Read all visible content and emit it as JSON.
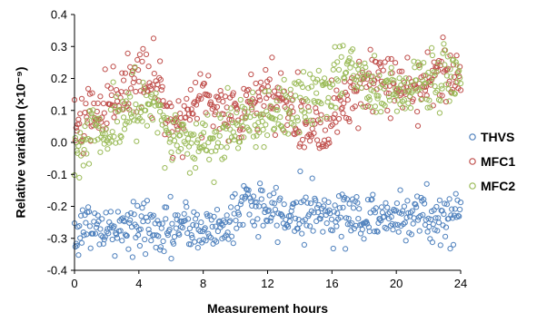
{
  "chart_data": {
    "type": "scatter",
    "xlabel": "Measurement hours",
    "ylabel": "Relative variation (×10⁻⁹)",
    "xlim": [
      0,
      24
    ],
    "ylim": [
      -0.4,
      0.4
    ],
    "x_ticks": [
      0,
      4,
      8,
      12,
      16,
      20,
      24
    ],
    "y_ticks": [
      -0.4,
      -0.3,
      -0.2,
      -0.1,
      0.0,
      0.1,
      0.2,
      0.3,
      0.4
    ],
    "y_tick_labels": [
      "-0.4",
      "-0.3",
      "-0.2",
      "-0.1",
      "0.0",
      "0.1",
      "0.2",
      "0.3",
      "0.4"
    ],
    "x_tick_labels": [
      "0",
      "4",
      "8",
      "12",
      "16",
      "20",
      "24"
    ],
    "grid": false,
    "legend_position": "right",
    "marker": "open-circle",
    "series": [
      {
        "name": "THVS",
        "color": "#4f81bd",
        "trend": [
          [
            0,
            -0.29
          ],
          [
            0.5,
            -0.26
          ],
          [
            1,
            -0.26
          ],
          [
            1.5,
            -0.27
          ],
          [
            2,
            -0.28
          ],
          [
            2.5,
            -0.27
          ],
          [
            3,
            -0.27
          ],
          [
            3.5,
            -0.26
          ],
          [
            4,
            -0.27
          ],
          [
            4.5,
            -0.26
          ],
          [
            5,
            -0.27
          ],
          [
            5.5,
            -0.28
          ],
          [
            6,
            -0.27
          ],
          [
            6.5,
            -0.26
          ],
          [
            7,
            -0.27
          ],
          [
            7.5,
            -0.27
          ],
          [
            8,
            -0.28
          ],
          [
            8.5,
            -0.27
          ],
          [
            9,
            -0.26
          ],
          [
            9.5,
            -0.25
          ],
          [
            10,
            -0.24
          ],
          [
            10.5,
            -0.17
          ],
          [
            11,
            -0.2
          ],
          [
            11.5,
            -0.21
          ],
          [
            12,
            -0.22
          ],
          [
            12.5,
            -0.21
          ],
          [
            13,
            -0.23
          ],
          [
            13.5,
            -0.22
          ],
          [
            14,
            -0.22
          ],
          [
            14.5,
            -0.21
          ],
          [
            15,
            -0.22
          ],
          [
            15.5,
            -0.22
          ],
          [
            16,
            -0.23
          ],
          [
            16.5,
            -0.22
          ],
          [
            17,
            -0.22
          ],
          [
            17.5,
            -0.23
          ],
          [
            18,
            -0.24
          ],
          [
            18.5,
            -0.23
          ],
          [
            19,
            -0.24
          ],
          [
            19.5,
            -0.23
          ],
          [
            20,
            -0.22
          ],
          [
            20.5,
            -0.22
          ],
          [
            21,
            -0.23
          ],
          [
            21.5,
            -0.23
          ],
          [
            22,
            -0.24
          ],
          [
            22.5,
            -0.23
          ],
          [
            23,
            -0.24
          ],
          [
            23.5,
            -0.23
          ],
          [
            24,
            -0.23
          ]
        ],
        "noise": 0.04
      },
      {
        "name": "MFC1",
        "color": "#c0504d",
        "trend": [
          [
            0,
            0.06
          ],
          [
            0.5,
            0.08
          ],
          [
            1,
            0.07
          ],
          [
            1.5,
            0.1
          ],
          [
            2,
            0.13
          ],
          [
            2.5,
            0.16
          ],
          [
            3,
            0.15
          ],
          [
            3.5,
            0.18
          ],
          [
            4,
            0.2
          ],
          [
            4.5,
            0.19
          ],
          [
            5,
            0.2
          ],
          [
            5.5,
            0.12
          ],
          [
            6,
            0.08
          ],
          [
            6.5,
            0.07
          ],
          [
            7,
            0.1
          ],
          [
            7.5,
            0.12
          ],
          [
            8,
            0.14
          ],
          [
            8.5,
            0.15
          ],
          [
            9,
            0.12
          ],
          [
            9.5,
            0.08
          ],
          [
            10,
            0.09
          ],
          [
            10.5,
            0.1
          ],
          [
            11,
            0.12
          ],
          [
            11.5,
            0.13
          ],
          [
            12,
            0.14
          ],
          [
            12.5,
            0.13
          ],
          [
            13,
            0.12
          ],
          [
            13.5,
            0.11
          ],
          [
            14,
            0.07
          ],
          [
            14.5,
            0.06
          ],
          [
            15,
            0.05
          ],
          [
            15.5,
            0.03
          ],
          [
            16,
            0.1
          ],
          [
            16.5,
            0.12
          ],
          [
            17,
            0.15
          ],
          [
            17.5,
            0.17
          ],
          [
            18,
            0.18
          ],
          [
            18.5,
            0.18
          ],
          [
            19,
            0.2
          ],
          [
            19.5,
            0.17
          ],
          [
            20,
            0.16
          ],
          [
            20.5,
            0.17
          ],
          [
            21,
            0.18
          ],
          [
            21.5,
            0.19
          ],
          [
            22,
            0.2
          ],
          [
            22.5,
            0.21
          ],
          [
            23,
            0.22
          ],
          [
            23.5,
            0.22
          ],
          [
            24,
            0.22
          ]
        ],
        "noise": 0.05
      },
      {
        "name": "MFC2",
        "color": "#9bbb59",
        "trend": [
          [
            0,
            -0.01
          ],
          [
            0.5,
            0.0
          ],
          [
            1,
            0.02
          ],
          [
            1.5,
            0.03
          ],
          [
            2,
            0.04
          ],
          [
            2.5,
            0.06
          ],
          [
            3,
            0.08
          ],
          [
            3.5,
            0.1
          ],
          [
            4,
            0.1
          ],
          [
            4.5,
            0.12
          ],
          [
            5,
            0.1
          ],
          [
            5.5,
            0.06
          ],
          [
            6,
            0.02
          ],
          [
            6.5,
            0.01
          ],
          [
            7,
            0.0
          ],
          [
            7.5,
            -0.01
          ],
          [
            8,
            0.0
          ],
          [
            8.5,
            0.02
          ],
          [
            9,
            0.03
          ],
          [
            9.5,
            0.04
          ],
          [
            10,
            0.05
          ],
          [
            10.5,
            0.06
          ],
          [
            11,
            0.07
          ],
          [
            11.5,
            0.07
          ],
          [
            12,
            0.08
          ],
          [
            12.5,
            0.09
          ],
          [
            13,
            0.1
          ],
          [
            13.5,
            0.11
          ],
          [
            14,
            0.12
          ],
          [
            14.5,
            0.13
          ],
          [
            15,
            0.15
          ],
          [
            15.5,
            0.16
          ],
          [
            16,
            0.17
          ],
          [
            16.5,
            0.21
          ],
          [
            17,
            0.24
          ],
          [
            17.5,
            0.2
          ],
          [
            18,
            0.18
          ],
          [
            18.5,
            0.17
          ],
          [
            19,
            0.16
          ],
          [
            19.5,
            0.16
          ],
          [
            20,
            0.17
          ],
          [
            20.5,
            0.18
          ],
          [
            21,
            0.18
          ],
          [
            21.5,
            0.19
          ],
          [
            22,
            0.19
          ],
          [
            22.5,
            0.2
          ],
          [
            23,
            0.21
          ],
          [
            23.5,
            0.21
          ],
          [
            24,
            0.21
          ]
        ],
        "noise": 0.045
      }
    ]
  }
}
